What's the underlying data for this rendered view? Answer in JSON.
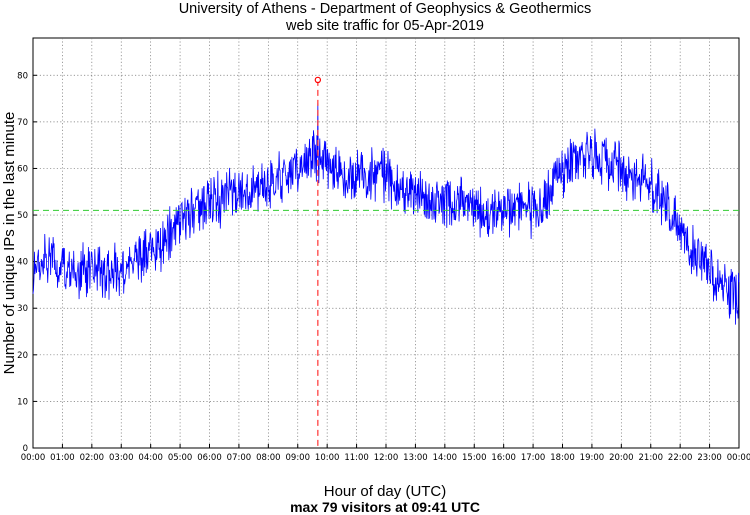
{
  "chart_data": {
    "type": "line",
    "title": [
      "University of Athens - Department of Geophysics & Geothermics",
      "web site traffic for 05-Apr-2019"
    ],
    "xlabel": "Hour of day (UTC)",
    "ylabel": "Number of unique IPs in the last minute",
    "footer": "max 79 visitors at 09:41 UTC",
    "xlim": [
      0,
      24
    ],
    "ylim": [
      0,
      88
    ],
    "grid": true,
    "x_ticks": [
      "00:00",
      "01:00",
      "02:00",
      "03:00",
      "04:00",
      "05:00",
      "06:00",
      "07:00",
      "08:00",
      "09:00",
      "10:00",
      "11:00",
      "12:00",
      "13:00",
      "14:00",
      "15:00",
      "16:00",
      "17:00",
      "18:00",
      "19:00",
      "20:00",
      "21:00",
      "22:00",
      "23:00",
      "00:00"
    ],
    "y_ticks": [
      0,
      10,
      20,
      30,
      40,
      50,
      60,
      70,
      80
    ],
    "average": 51,
    "max": {
      "value": 79,
      "time": "09:41",
      "hour": 9.683
    },
    "series": [
      {
        "name": "unique IPs per minute",
        "color": "#0000ff",
        "sampling": "1 min (interpolated trend + noise)",
        "trend": {
          "hours": [
            0.0,
            0.5,
            1.0,
            1.5,
            2.0,
            2.5,
            3.0,
            3.5,
            4.0,
            4.5,
            5.0,
            5.5,
            6.0,
            6.5,
            7.0,
            7.5,
            8.0,
            8.5,
            9.0,
            9.5,
            10.0,
            10.5,
            11.0,
            11.5,
            12.0,
            12.5,
            13.0,
            13.5,
            14.0,
            14.5,
            15.0,
            15.5,
            16.0,
            16.5,
            17.0,
            17.5,
            18.0,
            18.5,
            19.0,
            19.5,
            20.0,
            20.5,
            21.0,
            21.5,
            22.0,
            22.5,
            23.0,
            23.5,
            24.0
          ],
          "values": [
            39,
            40,
            39,
            38,
            38,
            38,
            39,
            40,
            42,
            45,
            48,
            51,
            53,
            54,
            55,
            55,
            56,
            58,
            60,
            63,
            62,
            59,
            58,
            59,
            58,
            55,
            54,
            53,
            53,
            53,
            51,
            50,
            51,
            52,
            51,
            54,
            59,
            62,
            63,
            61,
            60,
            58,
            56,
            52,
            47,
            42,
            38,
            34,
            32
          ]
        },
        "noise_amplitude": 4.5
      }
    ]
  }
}
